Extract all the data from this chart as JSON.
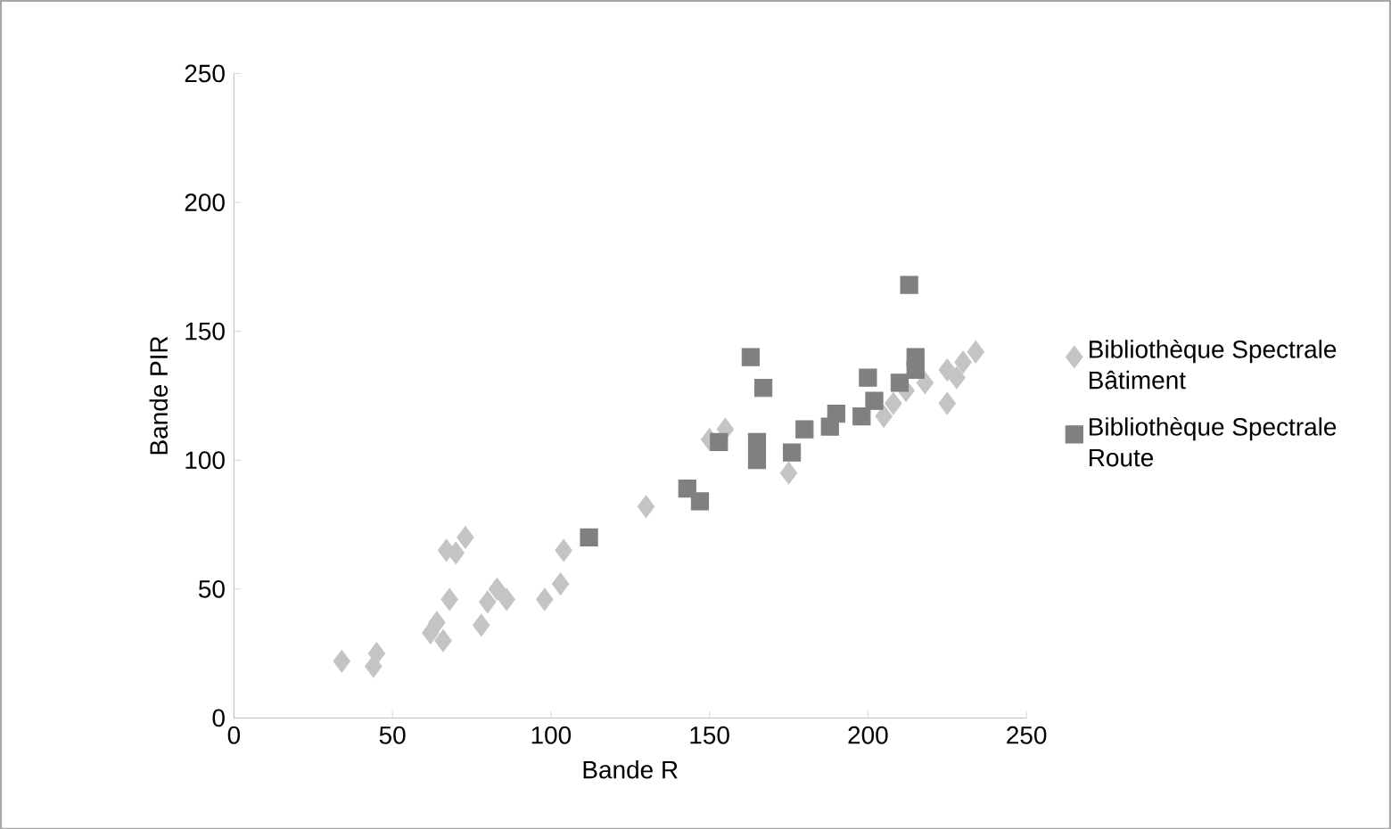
{
  "chart_data": {
    "type": "scatter",
    "xlabel": "Bande R",
    "ylabel": "Bande PIR",
    "xlim": [
      0,
      250
    ],
    "ylim": [
      0,
      250
    ],
    "xticks": [
      0,
      50,
      100,
      150,
      200,
      250
    ],
    "yticks": [
      0,
      50,
      100,
      150,
      200,
      250
    ],
    "legend": "right",
    "series": [
      {
        "name": "Bibliothèque Spectrale Bâtiment",
        "color": "#c4c4c4",
        "marker": "diamond",
        "x": [
          34,
          44,
          45,
          62,
          64,
          66,
          67,
          70,
          68,
          73,
          78,
          80,
          83,
          86,
          98,
          103,
          104,
          130,
          150,
          155,
          175,
          205,
          208,
          212,
          218,
          225,
          225,
          228,
          230,
          234
        ],
        "values": [
          22,
          20,
          25,
          33,
          37,
          30,
          65,
          64,
          46,
          70,
          36,
          45,
          50,
          46,
          46,
          52,
          65,
          82,
          108,
          112,
          95,
          117,
          122,
          127,
          130,
          122,
          135,
          132,
          138,
          142
        ]
      },
      {
        "name": "Bibliothèque Spectrale Route",
        "color": "#808080",
        "marker": "square",
        "x": [
          112,
          143,
          147,
          153,
          163,
          165,
          165,
          167,
          176,
          180,
          188,
          190,
          198,
          200,
          202,
          210,
          213,
          215,
          215
        ],
        "values": [
          70,
          89,
          84,
          107,
          140,
          107,
          100,
          128,
          103,
          112,
          113,
          118,
          117,
          132,
          123,
          130,
          168,
          140,
          135
        ]
      }
    ]
  }
}
